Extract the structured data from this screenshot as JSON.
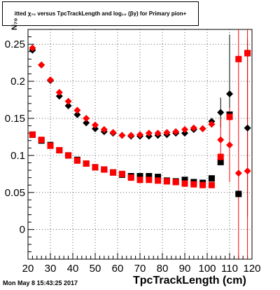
{
  "title": {
    "text": "itted  χ₇₀  versus  TpcTrackLength and log₁₀ (βγ) for Primary pion+"
  },
  "timestamp": "Mon May  8 15:43:25 2017",
  "chart_data": {
    "type": "scatter",
    "title": "itted  χ₇₀  versus  TpcTrackLength and log₁₀ (βγ) for Primary pion+",
    "xlabel": "TpcTrackLength (cm)",
    "ylabel": "N₇₀",
    "xlim": [
      20,
      120
    ],
    "ylim": [
      -0.04,
      0.27
    ],
    "x_ticks": [
      20,
      30,
      40,
      50,
      60,
      70,
      80,
      90,
      100,
      110,
      120
    ],
    "x_tick_labels": [
      "20",
      "30",
      "40",
      "50",
      "60",
      "70",
      "80",
      "90",
      "100",
      "110",
      "120"
    ],
    "y_ticks": [
      0,
      0.05,
      0.1,
      0.15,
      0.2,
      0.25
    ],
    "y_tick_labels": [
      "0",
      "0.05",
      "0.1",
      "0.15",
      "0.2",
      "0.25"
    ],
    "grid": true,
    "series": [
      {
        "marker": "diamond",
        "color": "#000000",
        "points": [
          [
            22,
            0.242
          ],
          [
            26,
            0.222
          ],
          [
            30,
            0.201
          ],
          [
            34,
            0.18
          ],
          [
            38,
            0.167
          ],
          [
            42,
            0.155
          ],
          [
            46,
            0.144
          ],
          [
            50,
            0.136
          ],
          [
            54,
            0.132
          ],
          [
            58,
            0.13
          ],
          [
            62,
            0.127
          ],
          [
            66,
            0.126
          ],
          [
            70,
            0.126
          ],
          [
            74,
            0.126
          ],
          [
            78,
            0.127
          ],
          [
            82,
            0.128
          ],
          [
            86,
            0.13
          ],
          [
            90,
            0.13
          ],
          [
            94,
            0.135
          ],
          [
            98,
            0.136
          ],
          [
            102,
            0.146
          ],
          [
            106,
            0.158
          ],
          [
            110,
            0.183
          ],
          [
            114,
            0.048
          ],
          [
            118,
            0.137
          ]
        ],
        "errors": [
          [
            106,
            0.02
          ],
          [
            110,
            0.08
          ],
          [
            114,
            0.0
          ],
          [
            118,
            0.12
          ]
        ]
      },
      {
        "marker": "diamond",
        "color": "#ff0000",
        "points": [
          [
            22,
            0.245
          ],
          [
            26,
            0.222
          ],
          [
            30,
            0.202
          ],
          [
            34,
            0.185
          ],
          [
            38,
            0.173
          ],
          [
            42,
            0.161
          ],
          [
            46,
            0.15
          ],
          [
            50,
            0.141
          ],
          [
            54,
            0.135
          ],
          [
            58,
            0.131
          ],
          [
            62,
            0.127
          ],
          [
            66,
            0.127
          ],
          [
            70,
            0.128
          ],
          [
            74,
            0.13
          ],
          [
            78,
            0.13
          ],
          [
            82,
            0.131
          ],
          [
            86,
            0.132
          ],
          [
            90,
            0.135
          ],
          [
            94,
            0.137
          ],
          [
            98,
            0.136
          ],
          [
            102,
            0.142
          ],
          [
            106,
            0.121
          ],
          [
            110,
            0.114
          ],
          [
            114,
            0.076
          ],
          [
            118,
            0.079
          ]
        ],
        "errors": [
          [
            106,
            0.03
          ],
          [
            110,
            0.05
          ],
          [
            114,
            0.35
          ],
          [
            118,
            0.35
          ]
        ]
      },
      {
        "marker": "square",
        "color": "#000000",
        "points": [
          [
            22,
            0.128
          ],
          [
            26,
            0.12
          ],
          [
            30,
            0.114
          ],
          [
            34,
            0.107
          ],
          [
            38,
            0.1
          ],
          [
            42,
            0.094
          ],
          [
            46,
            0.089
          ],
          [
            50,
            0.084
          ],
          [
            54,
            0.081
          ],
          [
            58,
            0.077
          ],
          [
            62,
            0.074
          ],
          [
            66,
            0.072
          ],
          [
            70,
            0.072
          ],
          [
            74,
            0.072
          ],
          [
            78,
            0.071
          ],
          [
            82,
            0.066
          ],
          [
            86,
            0.065
          ],
          [
            90,
            0.067
          ],
          [
            94,
            0.064
          ],
          [
            98,
            0.063
          ],
          [
            102,
            0.069
          ],
          [
            106,
            0.091
          ],
          [
            110,
            0.155
          ],
          [
            114,
            0.048
          ],
          [
            118,
            0.238
          ]
        ]
      },
      {
        "marker": "square",
        "color": "#ff0000",
        "points": [
          [
            22,
            0.128
          ],
          [
            26,
            0.121
          ],
          [
            30,
            0.113
          ],
          [
            34,
            0.107
          ],
          [
            38,
            0.1
          ],
          [
            42,
            0.093
          ],
          [
            46,
            0.089
          ],
          [
            50,
            0.084
          ],
          [
            54,
            0.081
          ],
          [
            58,
            0.077
          ],
          [
            62,
            0.075
          ],
          [
            66,
            0.07
          ],
          [
            70,
            0.067
          ],
          [
            74,
            0.067
          ],
          [
            78,
            0.066
          ],
          [
            82,
            0.065
          ],
          [
            86,
            0.064
          ],
          [
            90,
            0.062
          ],
          [
            94,
            0.061
          ],
          [
            98,
            0.06
          ],
          [
            102,
            0.06
          ],
          [
            106,
            0.098
          ],
          [
            110,
            0.152
          ],
          [
            114,
            0.23
          ],
          [
            118,
            0.238
          ]
        ]
      }
    ]
  }
}
